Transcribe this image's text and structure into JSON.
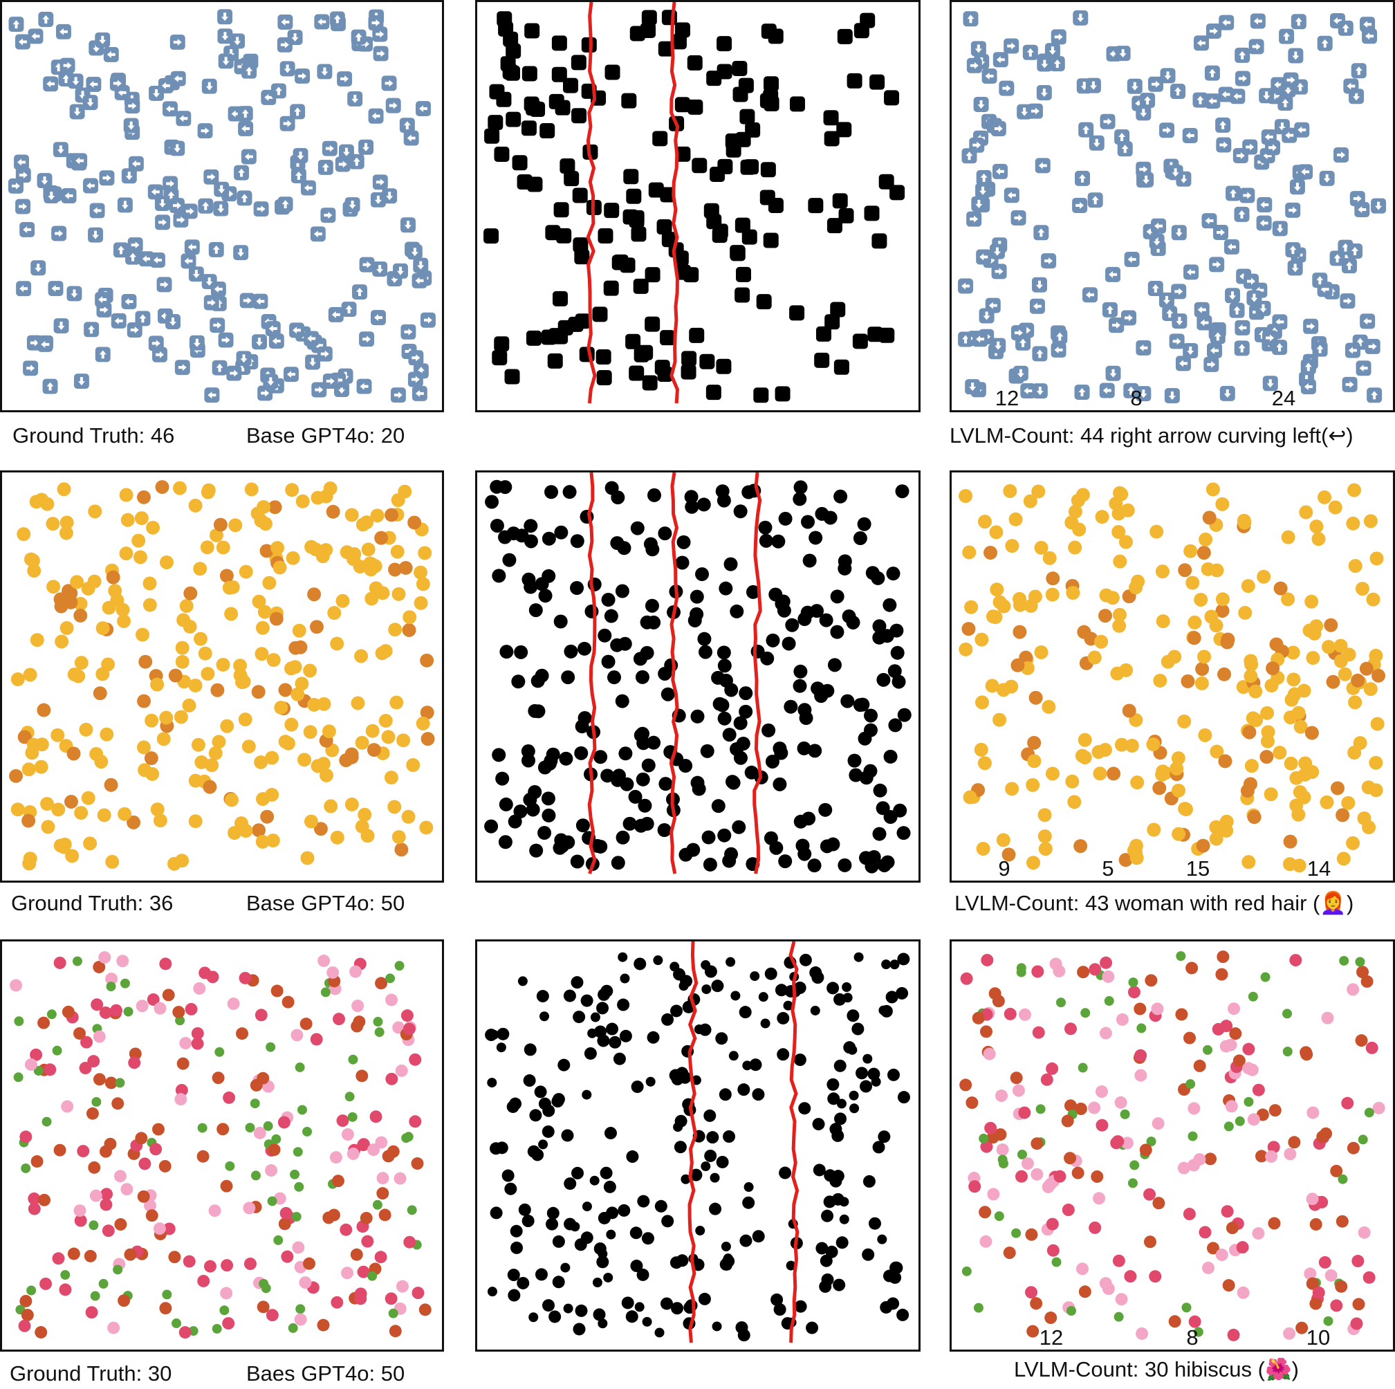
{
  "rows": [
    {
      "ground_truth": "Ground Truth: 46",
      "base": "Base GPT4o: 20",
      "lvlm": "LVLM-Count: 44 right arrow curving left(↩︎)",
      "segment_counts": [
        "12",
        "8",
        "24"
      ],
      "icon": "arrow-emoji",
      "colors": {
        "emoji": "#6f8fb4",
        "emoji_dark": "#ffffff"
      }
    },
    {
      "ground_truth": "Ground Truth: 36",
      "base": "Base GPT4o: 50",
      "lvlm": "LVLM-Count: 43 woman with red hair (👩‍🦰)",
      "segment_counts": [
        "9",
        "5",
        "15",
        "14"
      ],
      "icon": "face-emoji",
      "colors": {
        "emoji": "#f2b630",
        "emoji_dark": "#d9822b"
      }
    },
    {
      "ground_truth": "Ground Truth: 30",
      "base": "Baes GPT4o: 50",
      "lvlm": "LVLM-Count: 30 hibiscus (🌺)",
      "segment_counts": [
        "12",
        "8",
        "10"
      ],
      "icon": "flower-emoji",
      "colors": {
        "emoji": "#e0496b",
        "emoji_dark": "#5aa43a"
      }
    }
  ],
  "colors": {
    "divider_line": "#e3201b",
    "mask": "#000000",
    "frame": "#111111"
  }
}
